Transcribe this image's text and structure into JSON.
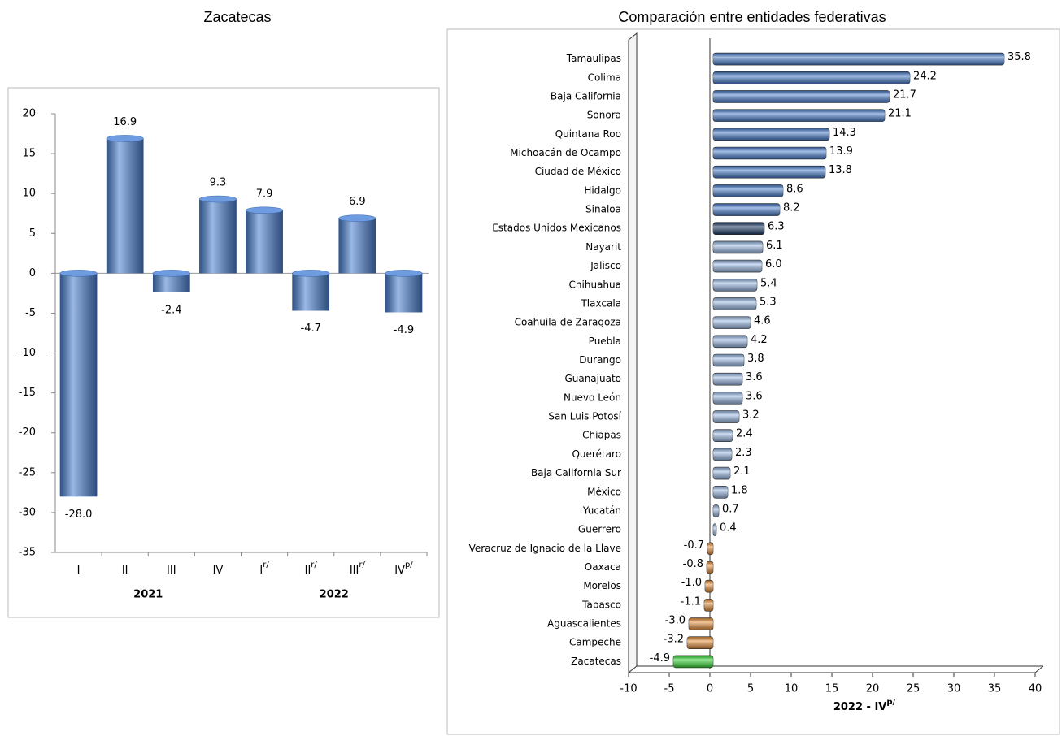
{
  "chart_data": [
    {
      "type": "bar",
      "title": "Zacatecas",
      "categories": [
        "I",
        "II",
        "III",
        "IV",
        "I",
        "II",
        "III",
        "IV"
      ],
      "category_superscripts": [
        null,
        null,
        null,
        null,
        "r/",
        "r/",
        "r/",
        "p/"
      ],
      "group_labels": [
        "2021",
        "2022"
      ],
      "values": [
        -28.0,
        16.9,
        -2.4,
        9.3,
        7.9,
        -4.7,
        6.9,
        -4.9
      ],
      "value_labels": [
        "-28.0",
        "16.9",
        "-2.4",
        "9.3",
        "7.9",
        "-4.7",
        "6.9",
        "-4.9"
      ],
      "color": "#4a7fcf",
      "ylim": [
        -35,
        20
      ],
      "yticks": [
        -35,
        -30,
        -25,
        -20,
        -15,
        -10,
        -5,
        0,
        5,
        10,
        15,
        20
      ]
    },
    {
      "type": "barh",
      "title": "Comparación entre entidades federativas",
      "xlabel": "2022 - IV",
      "xlabel_superscript": "p/",
      "categories": [
        "Tamaulipas",
        "Colima",
        "Baja California",
        "Sonora",
        "Quintana Roo",
        "Michoacán de Ocampo",
        "Ciudad de México",
        "Hidalgo",
        "Sinaloa",
        "Estados Unidos Mexicanos",
        "Nayarit",
        "Jalisco",
        "Chihuahua",
        "Tlaxcala",
        "Coahuila de Zaragoza",
        "Puebla",
        "Durango",
        "Guanajuato",
        "Nuevo León",
        "San Luis Potosí",
        "Chiapas",
        "Querétaro",
        "Baja California Sur",
        "México",
        "Yucatán",
        "Guerrero",
        "Veracruz de Ignacio de la Llave",
        "Oaxaca",
        "Morelos",
        "Tabasco",
        "Aguascalientes",
        "Campeche",
        "Zacatecas"
      ],
      "values": [
        35.8,
        24.2,
        21.7,
        21.1,
        14.3,
        13.9,
        13.8,
        8.6,
        8.2,
        6.3,
        6.1,
        6.0,
        5.4,
        5.3,
        4.6,
        4.2,
        3.8,
        3.6,
        3.6,
        3.2,
        2.4,
        2.3,
        2.1,
        1.8,
        0.7,
        0.4,
        -0.7,
        -0.8,
        -1.0,
        -1.1,
        -3.0,
        -3.2,
        -4.9
      ],
      "value_labels": [
        "35.8",
        "24.2",
        "21.7",
        "21.1",
        "14.3",
        "13.9",
        "13.8",
        "8.6",
        "8.2",
        "6.3",
        "6.1",
        "6.0",
        "5.4",
        "5.3",
        "4.6",
        "4.2",
        "3.8",
        "3.6",
        "3.6",
        "3.2",
        "2.4",
        "2.3",
        "2.1",
        "1.8",
        "0.7",
        "0.4",
        "-0.7",
        "-0.8",
        "-1.0",
        "-1.1",
        "-3.0",
        "-3.2",
        "-4.9"
      ],
      "colors": [
        "#4a7fcf",
        "#4a7fcf",
        "#4a7fcf",
        "#4a7fcf",
        "#4a7fcf",
        "#4a7fcf",
        "#4a7fcf",
        "#4a7fcf",
        "#4a7fcf",
        "#1b3a66",
        "#9dbde9",
        "#9dbde9",
        "#9dbde9",
        "#9dbde9",
        "#9dbde9",
        "#9dbde9",
        "#9dbde9",
        "#9dbde9",
        "#9dbde9",
        "#9dbde9",
        "#9dbde9",
        "#9dbde9",
        "#9dbde9",
        "#9dbde9",
        "#9dbde9",
        "#9dbde9",
        "#e8903a",
        "#e8903a",
        "#e8903a",
        "#e8903a",
        "#e8903a",
        "#e8903a",
        "#33dd33"
      ],
      "xlim": [
        -10,
        40
      ],
      "xticks": [
        -10,
        -5,
        0,
        5,
        10,
        15,
        20,
        25,
        30,
        35,
        40
      ]
    }
  ]
}
